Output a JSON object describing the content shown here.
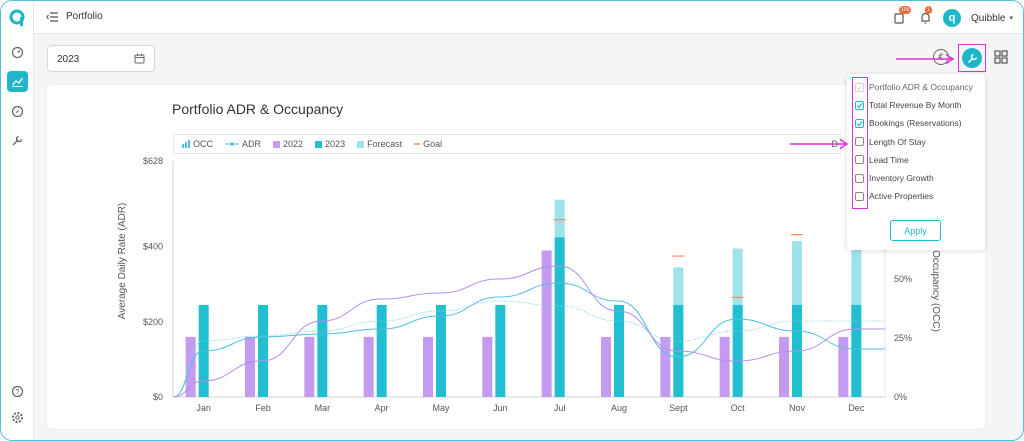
{
  "app": {
    "page_title": "Portfolio",
    "user_name": "Quibble",
    "avatar_letter": "q",
    "notif_badge_1": "100",
    "notif_badge_2": "1"
  },
  "filters": {
    "year": "2023"
  },
  "chart_data": {
    "type": "bar",
    "title": "Portfolio ADR & Occupancy",
    "ylabel": "Average Daily Rate (ADR)",
    "ylabel_right": "Occupancy (OCC)",
    "categories": [
      "Jan",
      "Feb",
      "Mar",
      "Apr",
      "May",
      "Jun",
      "Jul",
      "Aug",
      "Sept",
      "Oct",
      "Nov",
      "Dec"
    ],
    "ylim": [
      0,
      628
    ],
    "yticks": [
      "$0",
      "$200",
      "$400",
      "$628"
    ],
    "y2ticks": [
      "0%",
      "25%",
      "50%"
    ],
    "legend": [
      "OCC",
      "ADR",
      "2022",
      "2023",
      "Forecast",
      "Goal"
    ],
    "legend_extra": "D",
    "series": [
      {
        "name": "2022",
        "values": [
          160,
          160,
          160,
          160,
          160,
          160,
          390,
          160,
          160,
          160,
          160,
          160
        ]
      },
      {
        "name": "2023",
        "values": [
          245,
          245,
          245,
          245,
          245,
          245,
          425,
          245,
          245,
          245,
          245,
          245
        ]
      },
      {
        "name": "Forecast",
        "values": [
          0,
          0,
          0,
          0,
          0,
          0,
          525,
          0,
          345,
          395,
          415,
          400
        ]
      },
      {
        "name": "Goal",
        "values": [
          null,
          null,
          null,
          null,
          null,
          null,
          472,
          null,
          375,
          265,
          432,
          null
        ]
      }
    ],
    "colors": {
      "2022": "#c39cf2",
      "2023": "#22bfd1",
      "Forecast": "#9ee2ea",
      "Goal": "#f58c5a",
      "ADR": "#4fbfe0",
      "OCC": "#b58cee"
    }
  },
  "widget_menu": {
    "items": [
      {
        "label": "Portfolio ADR & Occupancy",
        "state": "disabled"
      },
      {
        "label": "Total Revenue By Month",
        "state": "checked"
      },
      {
        "label": "Bookings (Reservations)",
        "state": "checked"
      },
      {
        "label": "Length Of Stay",
        "state": "unchecked"
      },
      {
        "label": "Lead Time",
        "state": "unchecked"
      },
      {
        "label": "Inventory Growth",
        "state": "unchecked"
      },
      {
        "label": "Active Properties",
        "state": "unchecked"
      }
    ],
    "apply_label": "Apply"
  }
}
